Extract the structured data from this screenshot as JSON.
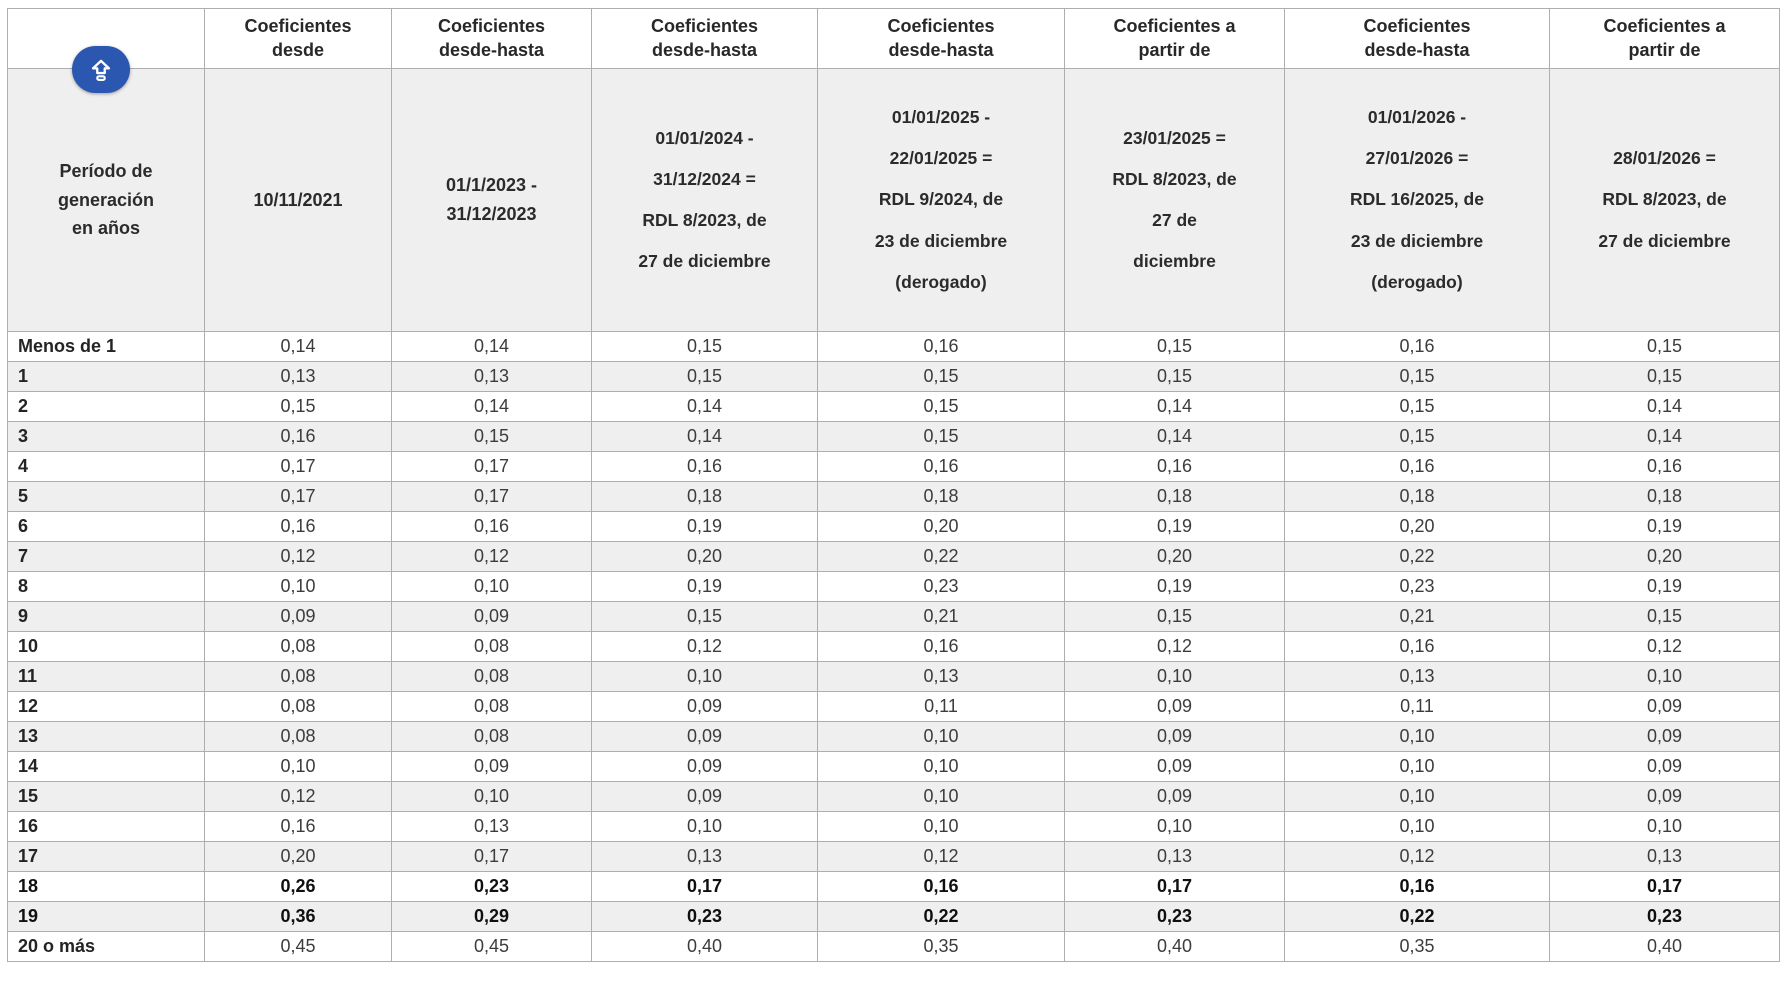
{
  "app": {
    "accent_color": "#2b57b1",
    "update_button": {
      "icon": "publish-icon",
      "tooltip_visible": false
    }
  },
  "table": {
    "header_row1": [
      "",
      "Coeficientes\ndesde",
      "Coeficientes\ndesde-hasta",
      "Coeficientes\ndesde-hasta",
      "Coeficientes\ndesde-hasta",
      "Coeficientes a\npartir de",
      "Coeficientes\ndesde-hasta",
      "Coeficientes a\npartir de"
    ],
    "header_row2": [
      "Período de\ngeneración\nen años",
      "10/11/2021",
      "01/1/2023 -\n31/12/2023",
      "01/01/2024 -\n31/12/2024 =\nRDL 8/2023, de\n27 de diciembre",
      "01/01/2025 -\n22/01/2025  =\nRDL  9/2024, de\n23 de diciembre\n(derogado)",
      "23/01/2025  =\nRDL 8/2023, de\n27 de\ndiciembre",
      "01/01/2026 -\n27/01/2026  =\nRDL  16/2025, de\n23 de diciembre\n(derogado)",
      "28/01/2026   =\nRDL 8/2023, de\n27 de diciembre"
    ],
    "rows": [
      {
        "label": "Menos de 1",
        "bold": false,
        "values": [
          "0,14",
          "0,14",
          "0,15",
          "0,16",
          "0,15",
          "0,16",
          "0,15"
        ]
      },
      {
        "label": "1",
        "bold": false,
        "values": [
          "0,13",
          "0,13",
          "0,15",
          "0,15",
          "0,15",
          "0,15",
          "0,15"
        ]
      },
      {
        "label": "2",
        "bold": false,
        "values": [
          "0,15",
          "0,14",
          "0,14",
          "0,15",
          "0,14",
          "0,15",
          "0,14"
        ]
      },
      {
        "label": "3",
        "bold": false,
        "values": [
          "0,16",
          "0,15",
          "0,14",
          "0,15",
          "0,14",
          "0,15",
          "0,14"
        ]
      },
      {
        "label": "4",
        "bold": false,
        "values": [
          "0,17",
          "0,17",
          "0,16",
          "0,16",
          "0,16",
          "0,16",
          "0,16"
        ]
      },
      {
        "label": "5",
        "bold": false,
        "values": [
          "0,17",
          "0,17",
          "0,18",
          "0,18",
          "0,18",
          "0,18",
          "0,18"
        ]
      },
      {
        "label": "6",
        "bold": false,
        "values": [
          "0,16",
          "0,16",
          "0,19",
          "0,20",
          "0,19",
          "0,20",
          "0,19"
        ]
      },
      {
        "label": "7",
        "bold": false,
        "values": [
          "0,12",
          "0,12",
          "0,20",
          "0,22",
          "0,20",
          "0,22",
          "0,20"
        ]
      },
      {
        "label": "8",
        "bold": false,
        "values": [
          "0,10",
          "0,10",
          "0,19",
          "0,23",
          "0,19",
          "0,23",
          "0,19"
        ]
      },
      {
        "label": "9",
        "bold": false,
        "values": [
          "0,09",
          "0,09",
          "0,15",
          "0,21",
          "0,15",
          "0,21",
          "0,15"
        ]
      },
      {
        "label": "10",
        "bold": false,
        "values": [
          "0,08",
          "0,08",
          "0,12",
          "0,16",
          "0,12",
          "0,16",
          "0,12"
        ]
      },
      {
        "label": "11",
        "bold": false,
        "values": [
          "0,08",
          "0,08",
          "0,10",
          "0,13",
          "0,10",
          "0,13",
          "0,10"
        ]
      },
      {
        "label": "12",
        "bold": false,
        "values": [
          "0,08",
          "0,08",
          "0,09",
          "0,11",
          "0,09",
          "0,11",
          "0,09"
        ]
      },
      {
        "label": "13",
        "bold": false,
        "values": [
          "0,08",
          "0,08",
          "0,09",
          "0,10",
          "0,09",
          "0,10",
          "0,09"
        ]
      },
      {
        "label": "14",
        "bold": false,
        "values": [
          "0,10",
          "0,09",
          "0,09",
          "0,10",
          "0,09",
          "0,10",
          "0,09"
        ]
      },
      {
        "label": "15",
        "bold": false,
        "values": [
          "0,12",
          "0,10",
          "0,09",
          "0,10",
          "0,09",
          "0,10",
          "0,09"
        ]
      },
      {
        "label": "16",
        "bold": false,
        "values": [
          "0,16",
          "0,13",
          "0,10",
          "0,10",
          "0,10",
          "0,10",
          "0,10"
        ]
      },
      {
        "label": "17",
        "bold": false,
        "values": [
          "0,20",
          "0,17",
          "0,13",
          "0,12",
          "0,13",
          "0,12",
          "0,13"
        ]
      },
      {
        "label": "18",
        "bold": true,
        "values": [
          "0,26",
          "0,23",
          "0,17",
          "0,16",
          "0,17",
          "0,16",
          "0,17"
        ]
      },
      {
        "label": "19",
        "bold": true,
        "values": [
          "0,36",
          "0,29",
          "0,23",
          "0,22",
          "0,23",
          "0,22",
          "0,23"
        ]
      },
      {
        "label": "20 o más",
        "bold": false,
        "values": [
          "0,45",
          "0,45",
          "0,40",
          "0,35",
          "0,40",
          "0,35",
          "0,40"
        ]
      }
    ]
  }
}
